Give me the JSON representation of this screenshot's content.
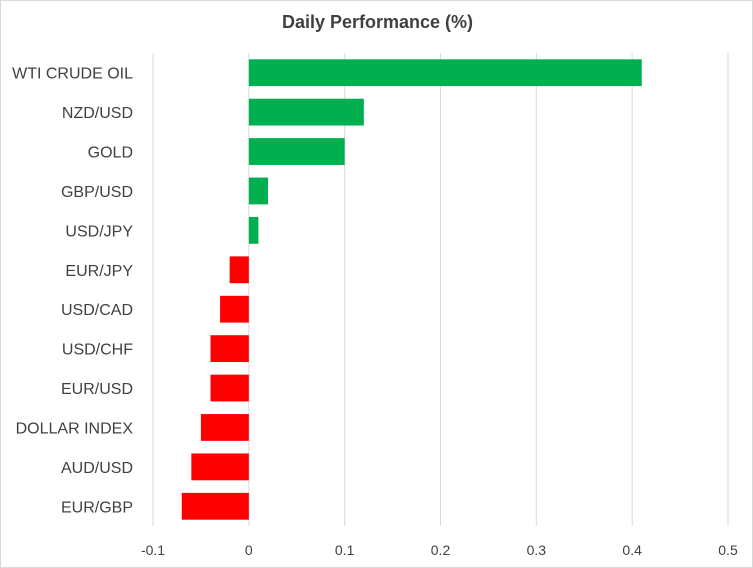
{
  "chart_data": {
    "type": "bar",
    "orientation": "horizontal",
    "title": "Daily Performance (%)",
    "xlabel": "",
    "ylabel": "",
    "categories": [
      "WTI CRUDE OIL",
      "NZD/USD",
      "GOLD",
      "GBP/USD",
      "USD/JPY",
      "EUR/JPY",
      "USD/CAD",
      "USD/CHF",
      "EUR/USD",
      "DOLLAR INDEX",
      "AUD/USD",
      "EUR/GBP"
    ],
    "values": [
      0.41,
      0.12,
      0.1,
      0.02,
      0.01,
      -0.02,
      -0.03,
      -0.04,
      -0.04,
      -0.05,
      -0.06,
      -0.07
    ],
    "xlim": [
      -0.1,
      0.5
    ],
    "xticks": [
      -0.1,
      0,
      0.1,
      0.2,
      0.3,
      0.4,
      0.5
    ],
    "grid": true,
    "legend": "none",
    "colors": {
      "positive": "#00b050",
      "negative": "#ff0000",
      "grid": "#d9d9d9",
      "text": "#404040"
    }
  }
}
